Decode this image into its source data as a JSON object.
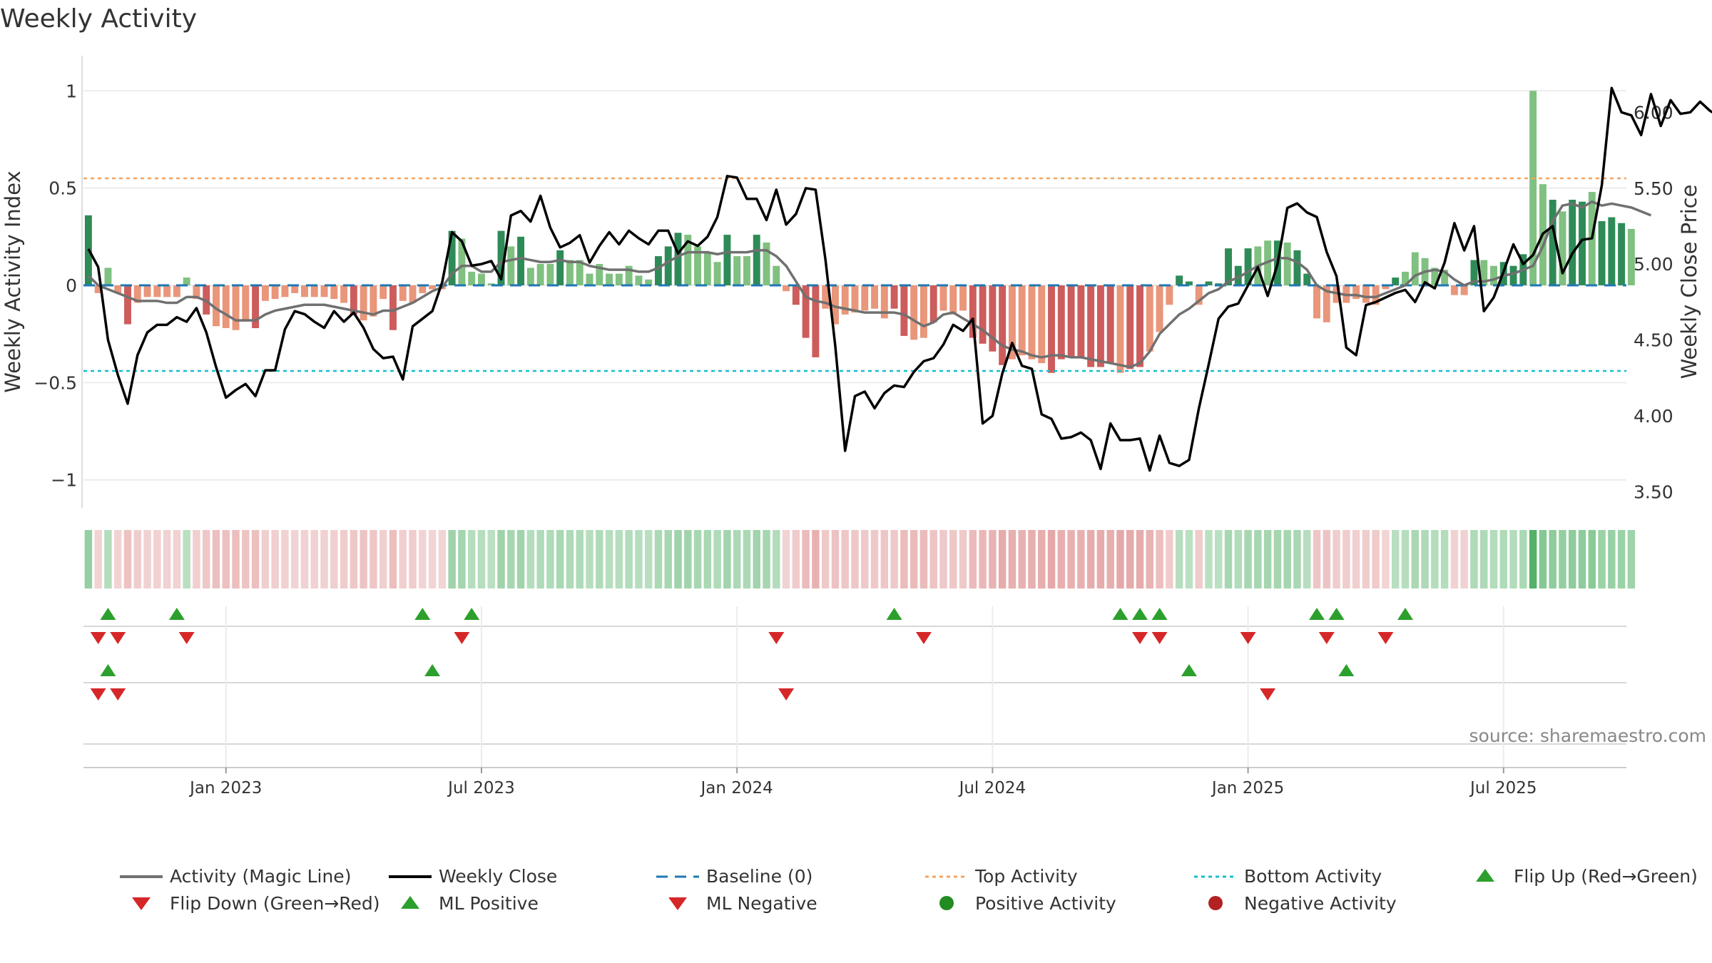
{
  "title": "Weekly Activity",
  "source": "source: sharemaestro.com",
  "colors": {
    "pos_dark": "#2e8b57",
    "pos_light": "#80c080",
    "neg_dark": "#cd5c5c",
    "neg_light": "#e9967a",
    "close": "#000000",
    "magic": "#707070",
    "baseline": "#1f77b4",
    "top": "#f4a460",
    "bottom": "#17becf",
    "flip_up": "#2ca02c",
    "flip_down": "#d62728"
  },
  "chart_data": {
    "type": "bar+line",
    "title": "Weekly Activity",
    "ylabel_left": "Weekly Activity Index",
    "ylabel_right": "Weekly Close Price",
    "y_left_ticks": [
      "1",
      "0.5",
      "0",
      "−0.5",
      "−1"
    ],
    "y_left_tick_values": [
      1,
      0.5,
      0,
      -0.5,
      -1
    ],
    "y_right_ticks": [
      "6.00",
      "5.50",
      "5.00",
      "4.50",
      "4.00",
      "3.50"
    ],
    "y_right_tick_values": [
      6.0,
      5.5,
      5.0,
      4.5,
      4.0,
      3.5
    ],
    "ylim_left": [
      -1.1,
      1.1
    ],
    "ylim_right": [
      3.45,
      6.27
    ],
    "x_tick_labels": [
      "Jan 2023",
      "Jul 2023",
      "Jan 2024",
      "Jul 2024",
      "Jan 2025",
      "Jul 2025"
    ],
    "x_tick_weeks": [
      14,
      40,
      66,
      92,
      118,
      144
    ],
    "n_weeks": 157,
    "top_activity": 0.55,
    "bottom_activity": -0.44,
    "activity": [
      0.36,
      -0.04,
      0.09,
      -0.04,
      -0.2,
      -0.09,
      -0.06,
      -0.06,
      -0.06,
      -0.06,
      0.04,
      -0.07,
      -0.15,
      -0.21,
      -0.22,
      -0.23,
      -0.18,
      -0.22,
      -0.08,
      -0.07,
      -0.06,
      -0.04,
      -0.06,
      -0.06,
      -0.06,
      -0.07,
      -0.09,
      -0.15,
      -0.18,
      -0.16,
      -0.07,
      -0.23,
      -0.08,
      -0.09,
      -0.04,
      -0.02,
      -0.02,
      0.28,
      0.24,
      0.07,
      0.06,
      0.01,
      0.28,
      0.2,
      0.25,
      0.09,
      0.11,
      0.11,
      0.18,
      0.13,
      0.13,
      0.06,
      0.11,
      0.06,
      0.06,
      0.1,
      0.05,
      0.03,
      0.15,
      0.2,
      0.27,
      0.26,
      0.2,
      0.17,
      0.12,
      0.26,
      0.15,
      0.15,
      0.26,
      0.22,
      0.1,
      -0.03,
      -0.1,
      -0.27,
      -0.37,
      -0.12,
      -0.2,
      -0.15,
      -0.14,
      -0.13,
      -0.12,
      -0.17,
      -0.12,
      -0.26,
      -0.28,
      -0.27,
      -0.19,
      -0.13,
      -0.15,
      -0.13,
      -0.27,
      -0.3,
      -0.34,
      -0.41,
      -0.38,
      -0.36,
      -0.38,
      -0.4,
      -0.45,
      -0.38,
      -0.37,
      -0.37,
      -0.42,
      -0.42,
      -0.4,
      -0.45,
      -0.43,
      -0.42,
      -0.34,
      -0.24,
      -0.1,
      0.05,
      0.02,
      -0.1,
      0.02,
      0.01,
      0.19,
      0.1,
      0.19,
      0.2,
      0.23,
      0.23,
      0.22,
      0.18,
      0.06,
      -0.17,
      -0.19,
      -0.09,
      -0.09,
      -0.07,
      -0.09,
      -0.1,
      -0.02,
      0.04,
      0.07,
      0.17,
      0.14,
      0.09,
      0.08,
      -0.05,
      -0.05,
      0.13,
      0.13,
      0.1,
      0.12,
      0.1,
      0.16,
      1.0,
      0.52,
      0.44,
      0.38,
      0.44,
      0.43,
      0.48,
      0.33,
      0.35,
      0.32,
      0.29
    ],
    "shade": [
      1,
      0,
      0,
      0,
      1,
      0,
      0,
      0,
      0,
      0,
      0,
      0,
      1,
      0,
      0,
      0,
      0,
      1,
      0,
      0,
      0,
      0,
      0,
      0,
      0,
      0,
      0,
      1,
      0,
      0,
      0,
      1,
      0,
      0,
      0,
      0,
      0,
      1,
      0,
      0,
      0,
      0,
      1,
      0,
      1,
      0,
      0,
      0,
      1,
      0,
      0,
      0,
      0,
      0,
      0,
      0,
      0,
      0,
      1,
      1,
      1,
      0,
      0,
      0,
      0,
      1,
      0,
      0,
      1,
      0,
      0,
      0,
      1,
      1,
      1,
      0,
      0,
      0,
      0,
      0,
      0,
      0,
      1,
      1,
      0,
      0,
      1,
      0,
      0,
      0,
      1,
      1,
      1,
      1,
      0,
      0,
      0,
      0,
      1,
      1,
      1,
      1,
      1,
      1,
      1,
      0,
      1,
      1,
      0,
      0,
      0,
      1,
      1,
      0,
      1,
      1,
      1,
      1,
      1,
      0,
      0,
      1,
      0,
      1,
      1,
      0,
      0,
      0,
      0,
      0,
      0,
      0,
      0,
      1,
      0,
      0,
      0,
      0,
      0,
      0,
      0,
      1,
      0,
      0,
      1,
      1,
      1,
      0,
      0,
      1,
      0,
      1,
      1,
      0,
      1,
      1,
      1
    ],
    "magic_line": [
      0.05,
      0.0,
      -0.02,
      -0.04,
      -0.06,
      -0.08,
      -0.08,
      -0.08,
      -0.09,
      -0.09,
      -0.06,
      -0.06,
      -0.08,
      -0.12,
      -0.15,
      -0.18,
      -0.18,
      -0.18,
      -0.15,
      -0.13,
      -0.12,
      -0.11,
      -0.1,
      -0.1,
      -0.1,
      -0.11,
      -0.12,
      -0.13,
      -0.14,
      -0.15,
      -0.13,
      -0.13,
      -0.11,
      -0.09,
      -0.06,
      -0.03,
      -0.01,
      0.06,
      0.1,
      0.1,
      0.07,
      0.07,
      0.12,
      0.13,
      0.14,
      0.13,
      0.12,
      0.12,
      0.13,
      0.12,
      0.12,
      0.1,
      0.09,
      0.08,
      0.08,
      0.08,
      0.07,
      0.07,
      0.09,
      0.12,
      0.15,
      0.17,
      0.17,
      0.17,
      0.16,
      0.17,
      0.17,
      0.17,
      0.18,
      0.18,
      0.15,
      0.1,
      0.02,
      -0.06,
      -0.08,
      -0.09,
      -0.11,
      -0.12,
      -0.13,
      -0.14,
      -0.14,
      -0.14,
      -0.14,
      -0.15,
      -0.18,
      -0.21,
      -0.19,
      -0.15,
      -0.14,
      -0.17,
      -0.2,
      -0.23,
      -0.27,
      -0.31,
      -0.33,
      -0.34,
      -0.36,
      -0.37,
      -0.36,
      -0.36,
      -0.37,
      -0.37,
      -0.38,
      -0.39,
      -0.4,
      -0.41,
      -0.42,
      -0.4,
      -0.34,
      -0.25,
      -0.2,
      -0.15,
      -0.12,
      -0.08,
      -0.04,
      -0.02,
      0.02,
      0.04,
      0.07,
      0.1,
      0.12,
      0.14,
      0.14,
      0.12,
      0.08,
      0.0,
      -0.03,
      -0.04,
      -0.05,
      -0.05,
      -0.06,
      -0.06,
      -0.04,
      -0.02,
      0.0,
      0.05,
      0.07,
      0.08,
      0.07,
      0.03,
      0.0,
      0.02,
      0.02,
      0.03,
      0.05,
      0.06,
      0.08,
      0.1,
      0.2,
      0.33,
      0.41,
      0.42,
      0.4,
      0.43,
      0.41,
      0.42,
      0.41,
      0.4,
      0.38,
      0.36
    ],
    "weekly_close": [
      5.1,
      4.98,
      4.5,
      4.27,
      4.08,
      4.4,
      4.55,
      4.6,
      4.6,
      4.65,
      4.62,
      4.71,
      4.55,
      4.32,
      4.12,
      4.17,
      4.21,
      4.13,
      4.3,
      4.3,
      4.57,
      4.69,
      4.67,
      4.62,
      4.58,
      4.69,
      4.62,
      4.68,
      4.58,
      4.44,
      4.38,
      4.39,
      4.24,
      4.59,
      4.64,
      4.69,
      4.88,
      5.21,
      5.15,
      4.99,
      5.0,
      5.02,
      4.9,
      5.32,
      5.35,
      5.28,
      5.45,
      5.24,
      5.11,
      5.14,
      5.19,
      5.01,
      5.12,
      5.21,
      5.13,
      5.22,
      5.17,
      5.13,
      5.22,
      5.22,
      5.07,
      5.15,
      5.12,
      5.18,
      5.31,
      5.58,
      5.57,
      5.43,
      5.43,
      5.29,
      5.49,
      5.26,
      5.33,
      5.5,
      5.49,
      5.03,
      4.46,
      3.77,
      4.13,
      4.16,
      4.05,
      4.15,
      4.2,
      4.19,
      4.29,
      4.36,
      4.38,
      4.47,
      4.6,
      4.56,
      4.64,
      3.95,
      4.0,
      4.28,
      4.48,
      4.33,
      4.31,
      4.01,
      3.98,
      3.85,
      3.86,
      3.89,
      3.84,
      3.65,
      3.95,
      3.84,
      3.84,
      3.85,
      3.64,
      3.87,
      3.69,
      3.67,
      3.71,
      4.05,
      4.34,
      4.64,
      4.72,
      4.74,
      4.86,
      4.98,
      4.79,
      5.0,
      5.37,
      5.4,
      5.34,
      5.31,
      5.08,
      4.92,
      4.45,
      4.4,
      4.73,
      4.75,
      4.78,
      4.81,
      4.83,
      4.75,
      4.88,
      4.84,
      5.01,
      5.27,
      5.09,
      5.25,
      4.69,
      4.78,
      4.95,
      5.13,
      5.0,
      5.06,
      5.2,
      5.25,
      4.94,
      5.07,
      5.16,
      5.17,
      5.52,
      6.16,
      6.0,
      5.98,
      5.85,
      6.12,
      5.91,
      6.08,
      5.99,
      6.0,
      6.07,
      6.01,
      5.97
    ],
    "flip_up_weeks": [
      2,
      9,
      34,
      39,
      82,
      105,
      107,
      109,
      125,
      127,
      134
    ],
    "flip_down_weeks": [
      1,
      3,
      10,
      38,
      70,
      85,
      107,
      109,
      118,
      126,
      132
    ],
    "ml_positive_weeks": [
      2,
      35,
      112,
      128
    ],
    "ml_negative_weeks": [
      1,
      3,
      71,
      120
    ],
    "baseline": 0
  },
  "legend": [
    {
      "label": "Activity (Magic Line)",
      "symbol": "line-gray"
    },
    {
      "label": "Weekly Close",
      "symbol": "line-black"
    },
    {
      "label": "Baseline (0)",
      "symbol": "dash-blue"
    },
    {
      "label": "Top Activity",
      "symbol": "dot-orange"
    },
    {
      "label": "Bottom Activity",
      "symbol": "dot-cyan"
    },
    {
      "label": "Flip Up (Red→Green)",
      "symbol": "tri-up-green"
    },
    {
      "label": "Flip Down (Green→Red)",
      "symbol": "tri-down-red"
    },
    {
      "label": "ML Positive",
      "symbol": "tri-up-green"
    },
    {
      "label": "ML Negative",
      "symbol": "tri-down-red"
    },
    {
      "label": "Positive Activity",
      "symbol": "circle-green"
    },
    {
      "label": "Negative Activity",
      "symbol": "circle-red"
    }
  ]
}
